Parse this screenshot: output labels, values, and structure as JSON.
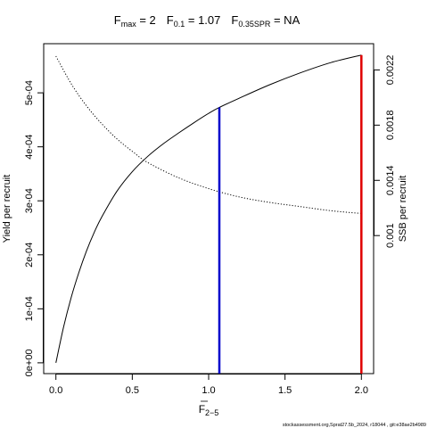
{
  "title": {
    "fmax_main": "F",
    "fmax_sub": "max",
    "fmax_val": " = 2",
    "f01_main": "F",
    "f01_sub": "0.1",
    "f01_val": " = 1.07",
    "fspr_main": "F",
    "fspr_sub": "0.35SPR",
    "fspr_val": " = NA"
  },
  "axes": {
    "xlabel_main": "F",
    "xlabel_sub": "2−5",
    "ylabel_left": "Yield per recruit",
    "ylabel_right": "SSB per recruit"
  },
  "footer": "stockassessment.org,Sprat27.5b_2024, r18044 , git:e38ae2b4989",
  "chart_data": {
    "type": "line",
    "xlim": [
      -0.08,
      2.08
    ],
    "x_ticks": [
      0.0,
      0.5,
      1.0,
      1.5,
      2.0
    ],
    "x_tick_labels": [
      "0.0",
      "0.5",
      "1.0",
      "1.5",
      "2.0"
    ],
    "ylim_left": [
      -2e-05,
      0.000591
    ],
    "y_left_ticks": [
      0,
      0.0001,
      0.0002,
      0.0003,
      0.0004,
      0.0005
    ],
    "y_left_tick_labels": [
      "0e+00",
      "1e-04",
      "2e-04",
      "3e-04",
      "4e-04",
      "5e-04"
    ],
    "ylim_right": [
      0.0,
      0.00239
    ],
    "y_right_ticks": [
      0.001,
      0.0014,
      0.0018,
      0.0022
    ],
    "y_right_tick_labels": [
      "0.001",
      "0.0014",
      "0.0018",
      "0.0022"
    ],
    "series": [
      {
        "axis": "left",
        "style": "solid",
        "x": [
          0.0,
          0.05,
          0.1,
          0.15,
          0.2,
          0.25,
          0.3,
          0.4,
          0.5,
          0.6,
          0.7,
          0.8,
          0.9,
          1.0,
          1.07,
          1.2,
          1.4,
          1.6,
          1.8,
          2.0
        ],
        "y": [
          0.0,
          6.6e-05,
          0.000121,
          0.000167,
          0.000207,
          0.000241,
          0.00027,
          0.000318,
          0.000354,
          0.000382,
          0.000405,
          0.000425,
          0.000444,
          0.000462,
          0.000473,
          0.00049,
          0.000515,
          0.000537,
          0.000556,
          0.00057
        ]
      },
      {
        "axis": "right",
        "style": "dotted",
        "x": [
          0.0,
          0.1,
          0.2,
          0.3,
          0.4,
          0.5,
          0.6,
          0.8,
          1.0,
          1.2,
          1.4,
          1.6,
          1.8,
          2.0
        ],
        "y": [
          0.0023,
          0.0021,
          0.00194,
          0.00181,
          0.0017,
          0.00161,
          0.00153,
          0.00142,
          0.00134,
          0.00128,
          0.00124,
          0.00121,
          0.00118,
          0.00116
        ]
      }
    ],
    "vlines": [
      {
        "x": 1.07,
        "y_top": 0.000473,
        "color": "#0000cc"
      },
      {
        "x": 2.0,
        "y_top": 0.00057,
        "color": "#e00000"
      }
    ]
  }
}
